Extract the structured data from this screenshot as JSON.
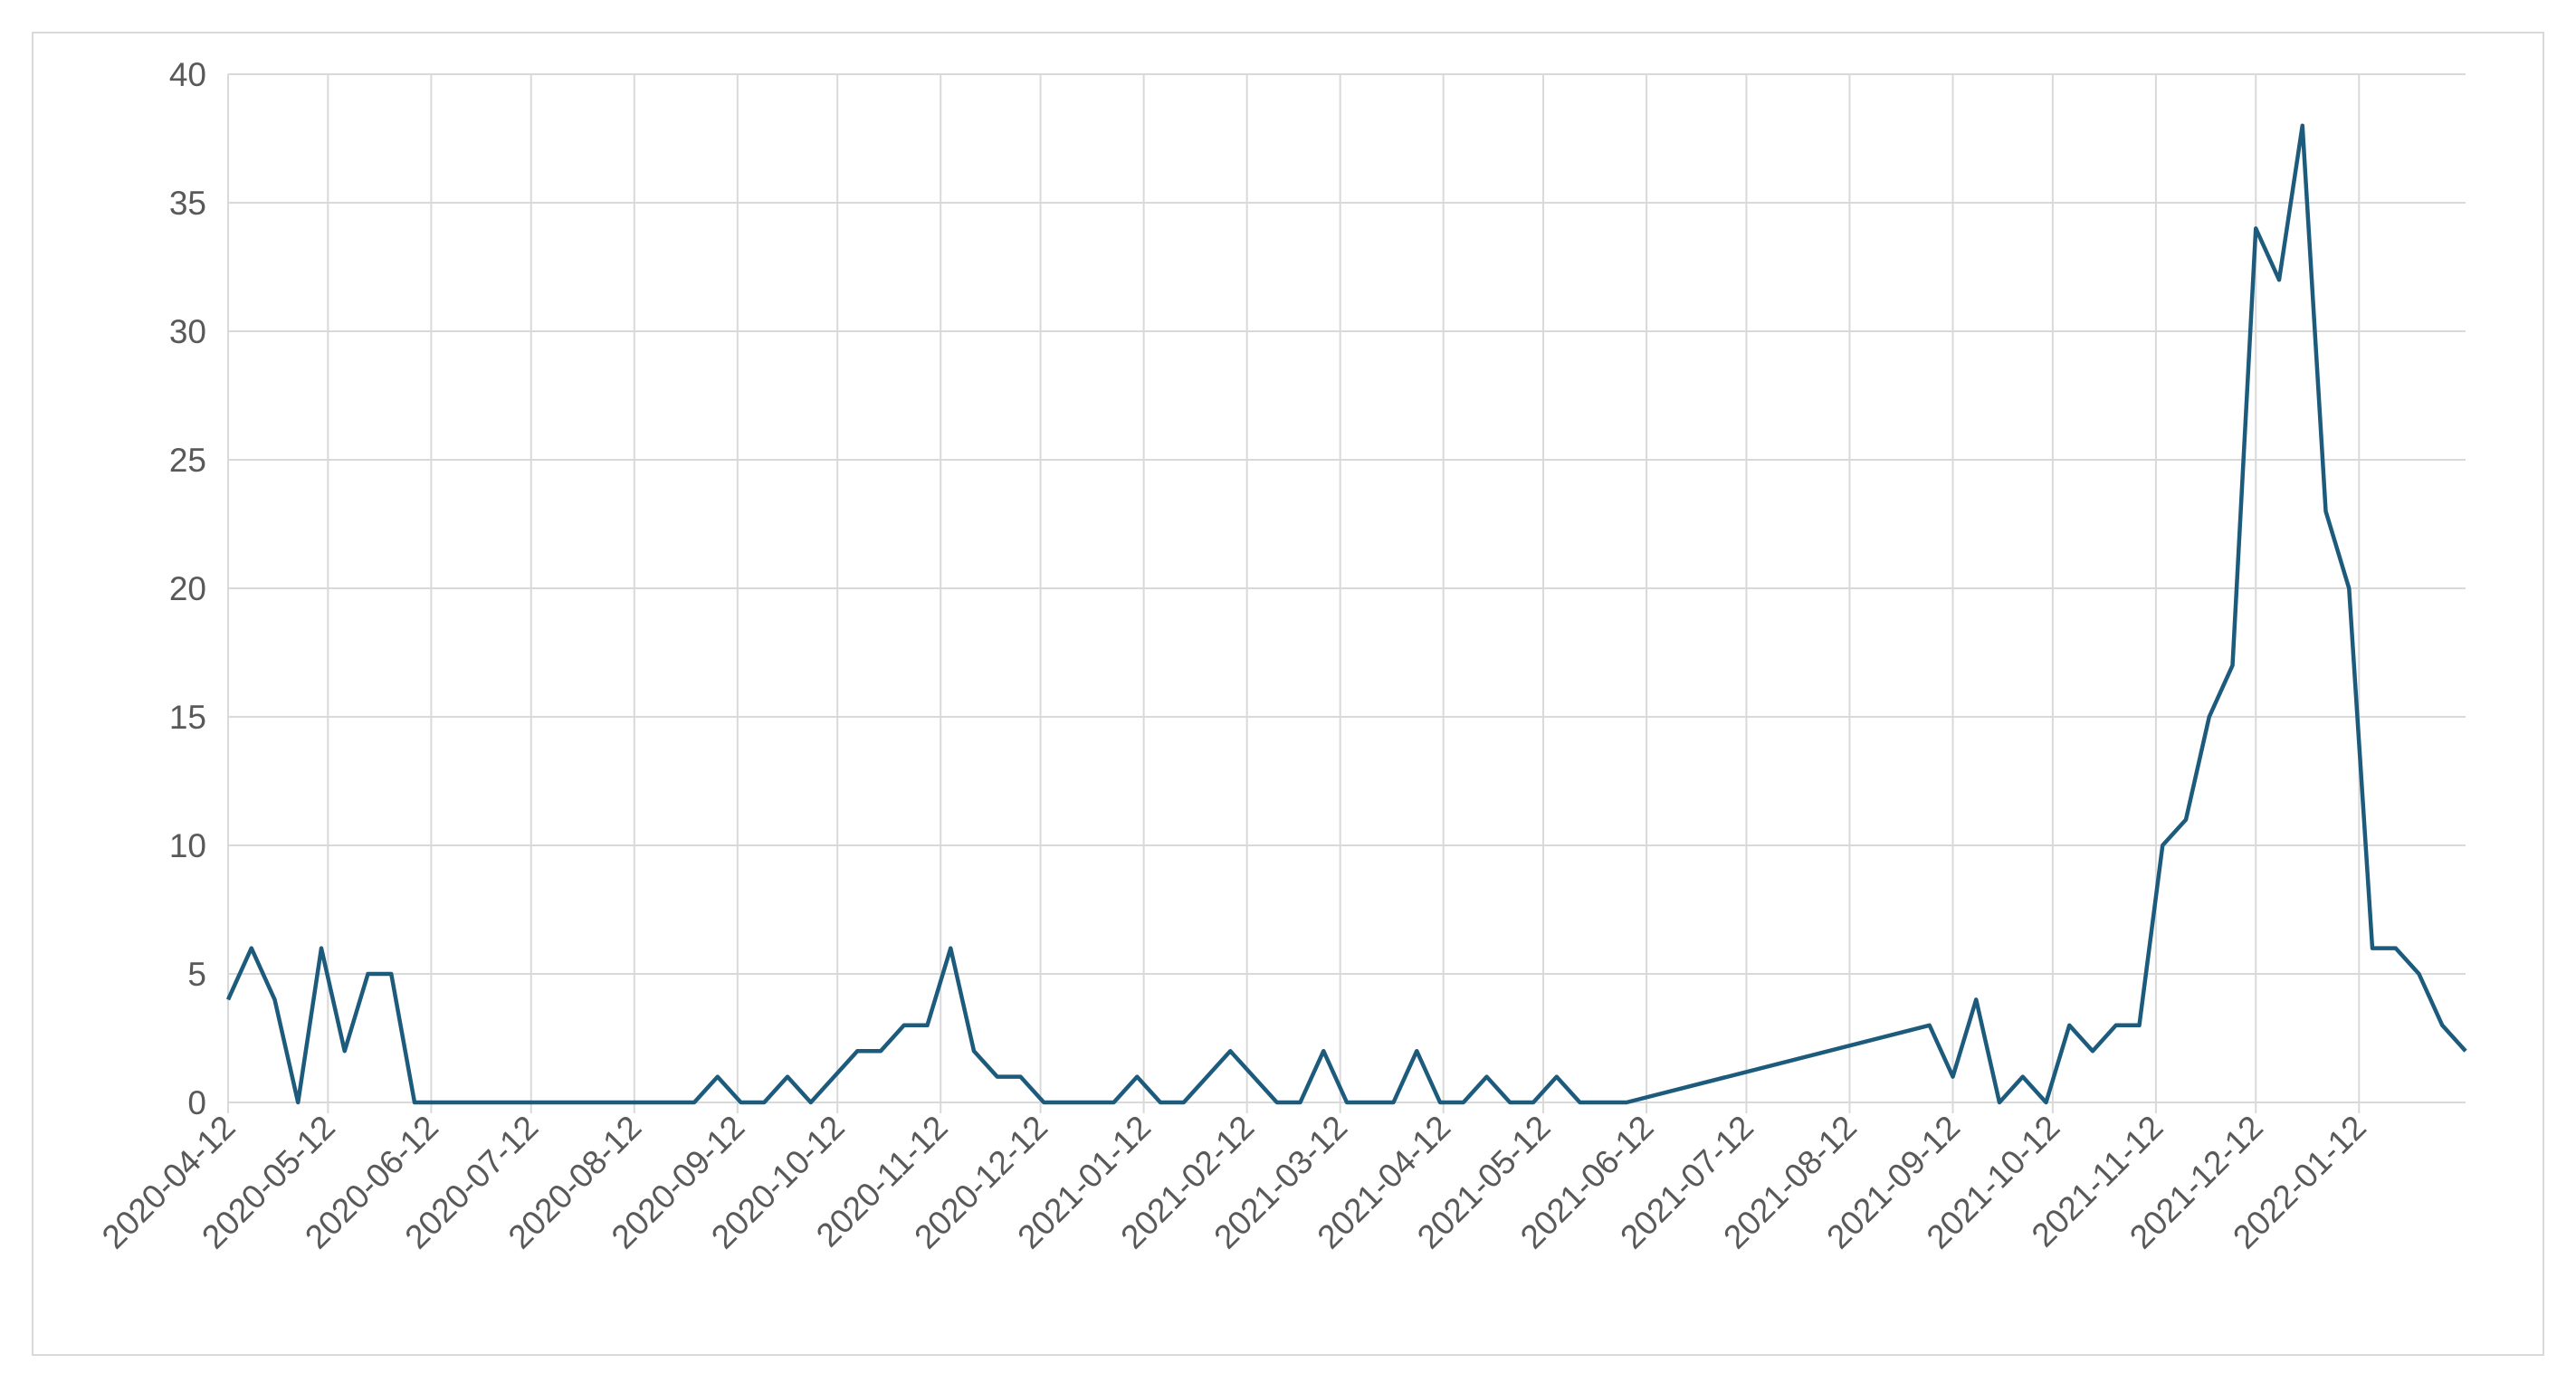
{
  "chart_data": {
    "type": "line",
    "color": "#1d5b7c",
    "grid": true,
    "x": [
      "2020-04-12",
      "2020-04-19",
      "2020-04-26",
      "2020-05-03",
      "2020-05-10",
      "2020-05-17",
      "2020-05-24",
      "2020-05-31",
      "2020-06-07",
      "2020-06-14",
      "2020-06-21",
      "2020-06-28",
      "2020-07-05",
      "2020-07-12",
      "2020-07-19",
      "2020-07-26",
      "2020-08-02",
      "2020-08-09",
      "2020-08-16",
      "2020-08-23",
      "2020-08-30",
      "2020-09-06",
      "2020-09-13",
      "2020-09-20",
      "2020-09-27",
      "2020-10-04",
      "2020-10-11",
      "2020-10-18",
      "2020-10-25",
      "2020-11-01",
      "2020-11-08",
      "2020-11-15",
      "2020-11-22",
      "2020-11-29",
      "2020-12-06",
      "2020-12-13",
      "2020-12-20",
      "2020-12-27",
      "2021-01-03",
      "2021-01-10",
      "2021-01-17",
      "2021-01-24",
      "2021-01-31",
      "2021-02-07",
      "2021-02-14",
      "2021-02-21",
      "2021-02-28",
      "2021-03-07",
      "2021-03-14",
      "2021-03-21",
      "2021-03-28",
      "2021-04-04",
      "2021-04-11",
      "2021-04-18",
      "2021-04-25",
      "2021-05-02",
      "2021-05-09",
      "2021-05-16",
      "2021-05-23",
      "2021-05-30",
      "2021-06-06",
      "2021-09-05",
      "2021-09-12",
      "2021-09-19",
      "2021-09-26",
      "2021-10-03",
      "2021-10-10",
      "2021-10-17",
      "2021-10-24",
      "2021-10-31",
      "2021-11-07",
      "2021-11-14",
      "2021-11-21",
      "2021-11-28",
      "2021-12-05",
      "2021-12-12",
      "2021-12-19",
      "2021-12-26",
      "2022-01-02",
      "2022-01-09",
      "2022-01-16",
      "2022-01-23",
      "2022-01-30",
      "2022-02-06",
      "2022-02-13"
    ],
    "values": [
      4,
      6,
      4,
      0,
      6,
      2,
      5,
      5,
      0,
      0,
      0,
      0,
      0,
      0,
      0,
      0,
      0,
      0,
      0,
      0,
      0,
      1,
      0,
      0,
      1,
      0,
      1,
      2,
      2,
      3,
      3,
      6,
      2,
      1,
      1,
      0,
      0,
      0,
      0,
      1,
      0,
      0,
      1,
      2,
      1,
      0,
      0,
      2,
      0,
      0,
      0,
      2,
      0,
      0,
      1,
      0,
      0,
      1,
      0,
      0,
      0,
      3,
      1,
      4,
      0,
      1,
      0,
      3,
      2,
      3,
      3,
      10,
      11,
      15,
      17,
      34,
      32,
      38,
      23,
      20,
      6,
      6,
      5,
      3,
      2
    ],
    "xlim": [
      "2020-04-12",
      "2022-02-13"
    ],
    "xticks": [
      "2020-04-12",
      "2020-05-12",
      "2020-06-12",
      "2020-07-12",
      "2020-08-12",
      "2020-09-12",
      "2020-10-12",
      "2020-11-12",
      "2020-12-12",
      "2021-01-12",
      "2021-02-12",
      "2021-03-12",
      "2021-04-12",
      "2021-05-12",
      "2021-06-12",
      "2021-07-12",
      "2021-08-12",
      "2021-09-12",
      "2021-10-12",
      "2021-11-12",
      "2021-12-12",
      "2022-01-12"
    ],
    "ylim": [
      0,
      40
    ],
    "yticks": [
      0,
      5,
      10,
      15,
      20,
      25,
      30,
      35,
      40
    ]
  }
}
